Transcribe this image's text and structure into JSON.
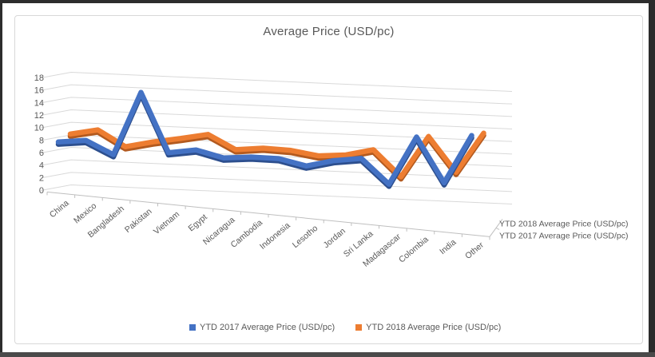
{
  "chart_data": {
    "type": "line",
    "style_3d": true,
    "title": "Average Price (USD/pc)",
    "categories": [
      "China",
      "Mexico",
      "Bangladesh",
      "Pakistan",
      "Vietnam",
      "Egypt",
      "Nicaragua",
      "Cambodia",
      "Indonesia",
      "Lesotho",
      "Jordan",
      "Sri Lanka",
      "Madagascar",
      "Colombia",
      "India",
      "Other"
    ],
    "series": [
      {
        "name": "YTD 2017 Average Price (USD/pc)",
        "color": "#4472C4",
        "edge_color": "#2d4f8e",
        "values": [
          7.8,
          8.1,
          6.0,
          15.6,
          6.4,
          6.9,
          5.7,
          5.9,
          5.7,
          4.6,
          5.5,
          5.9,
          1.8,
          9.5,
          2.1,
          9.9
        ]
      },
      {
        "name": "YTD 2018 Average Price (USD/pc)",
        "color": "#ED7D31",
        "edge_color": "#b35a1f",
        "values": [
          9.0,
          9.7,
          7.2,
          8.0,
          8.6,
          9.3,
          7.0,
          7.3,
          7.0,
          6.2,
          6.4,
          7.3,
          3.0,
          9.6,
          3.8,
          10.3
        ]
      }
    ],
    "ylim": [
      0,
      18
    ],
    "ytick_step": 2,
    "grid": true,
    "legend_position": "bottom",
    "depth_axis_labels_top_to_bottom": [
      "YTD 2018 Average Price (USD/pc)",
      "YTD 2017 Average Price (USD/pc)"
    ],
    "axis_text_color": "#595959",
    "gridline_color": "#d9d9d9",
    "axis_line_color": "#bfbfbf"
  }
}
